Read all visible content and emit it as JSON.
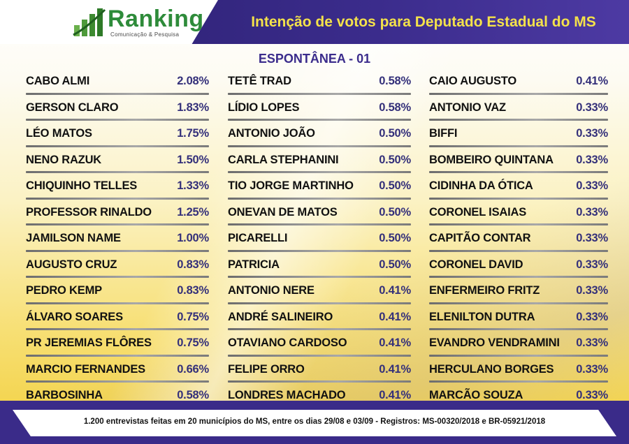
{
  "header": {
    "brand": "Ranking",
    "brand_tagline": "Comunicação & Pesquisa",
    "title": "Intenção de votos para Deputado Estadual do MS"
  },
  "subtitle": "ESPONTÂNEA - 01",
  "columns": [
    [
      {
        "name": "CABO ALMI",
        "pct": "2.08%"
      },
      {
        "name": "GERSON CLARO",
        "pct": "1.83%"
      },
      {
        "name": "LÉO MATOS",
        "pct": "1.75%"
      },
      {
        "name": "NENO RAZUK",
        "pct": "1.50%"
      },
      {
        "name": "CHIQUINHO TELLES",
        "pct": "1.33%"
      },
      {
        "name": "PROFESSOR RINALDO",
        "pct": "1.25%"
      },
      {
        "name": "JAMILSON NAME",
        "pct": "1.00%"
      },
      {
        "name": "AUGUSTO CRUZ",
        "pct": "0.83%"
      },
      {
        "name": "PEDRO KEMP",
        "pct": "0.83%"
      },
      {
        "name": "ÁLVARO SOARES",
        "pct": "0.75%"
      },
      {
        "name": "PR JEREMIAS FLÔRES",
        "pct": "0.75%"
      },
      {
        "name": "MARCIO FERNANDES",
        "pct": "0.66%"
      },
      {
        "name": "BARBOSINHA",
        "pct": "0.58%"
      }
    ],
    [
      {
        "name": "TETÊ TRAD",
        "pct": "0.58%"
      },
      {
        "name": "LÍDIO LOPES",
        "pct": "0.58%"
      },
      {
        "name": "ANTONIO JOÃO",
        "pct": "0.50%"
      },
      {
        "name": "CARLA STEPHANINI",
        "pct": "0.50%"
      },
      {
        "name": "TIO JORGE MARTINHO",
        "pct": "0.50%"
      },
      {
        "name": "ONEVAN DE MATOS",
        "pct": "0.50%"
      },
      {
        "name": "PICARELLI",
        "pct": "0.50%"
      },
      {
        "name": "PATRICIA",
        "pct": "0.50%"
      },
      {
        "name": "ANTONIO NERE",
        "pct": "0.41%"
      },
      {
        "name": "ANDRÉ SALINEIRO",
        "pct": "0.41%"
      },
      {
        "name": "OTAVIANO CARDOSO",
        "pct": "0.41%"
      },
      {
        "name": "FELIPE ORRO",
        "pct": "0.41%"
      },
      {
        "name": "LONDRES MACHADO",
        "pct": "0.41%"
      }
    ],
    [
      {
        "name": "CAIO AUGUSTO",
        "pct": "0.41%"
      },
      {
        "name": "ANTONIO VAZ",
        "pct": "0.33%"
      },
      {
        "name": "BIFFI",
        "pct": "0.33%"
      },
      {
        "name": "BOMBEIRO QUINTANA",
        "pct": "0.33%"
      },
      {
        "name": "CIDINHA DA ÓTICA",
        "pct": "0.33%"
      },
      {
        "name": "CORONEL ISAIAS",
        "pct": "0.33%"
      },
      {
        "name": "CAPITÃO CONTAR",
        "pct": "0.33%"
      },
      {
        "name": "CORONEL DAVID",
        "pct": "0.33%"
      },
      {
        "name": "ENFERMEIRO FRITZ",
        "pct": "0.33%"
      },
      {
        "name": "ELENILTON DUTRA",
        "pct": "0.33%"
      },
      {
        "name": "EVANDRO VENDRAMINI",
        "pct": "0.33%"
      },
      {
        "name": "HERCULANO BORGES",
        "pct": "0.33%"
      },
      {
        "name": "MARCÃO SOUZA",
        "pct": "0.33%"
      }
    ]
  ],
  "footer": "1.200 entrevistas feitas em 20 municípios do MS, entre os dias 29/08 e 03/09 - Registros: MS-00320/2018 e BR-05921/2018",
  "colors": {
    "header_bg": "#3b2c8c",
    "title_yellow": "#f4e24a",
    "brand_green": "#2e8b3a",
    "percent_blue": "#34307a"
  },
  "icons": {
    "logo": "bar-chart-logo-icon"
  }
}
